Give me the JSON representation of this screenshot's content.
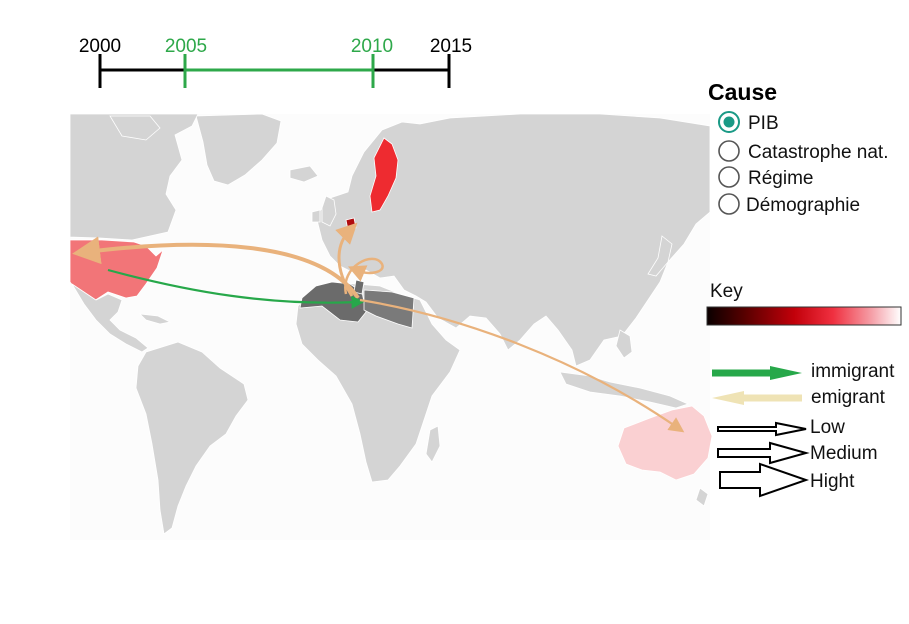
{
  "timeline": {
    "years": [
      "2000",
      "2005",
      "2010",
      "2015"
    ],
    "selected_range": [
      "2005",
      "2010"
    ],
    "base_color": "#000000",
    "selected_color": "#2ea84a"
  },
  "cause_panel": {
    "title": "Cause",
    "options": [
      {
        "label": "PIB",
        "selected": true
      },
      {
        "label": "Catastrophe nat.",
        "selected": false
      },
      {
        "label": "Régime",
        "selected": false
      },
      {
        "label": "Démographie",
        "selected": false
      }
    ],
    "selected_color": "#1a9a86"
  },
  "key": {
    "title": "Key",
    "gradient_colors": [
      "#0a0000",
      "#5a0000",
      "#c2000a",
      "#f03040",
      "#f5a0a8",
      "#ffffff"
    ]
  },
  "flow_legend": {
    "immigrant_label": "immigrant",
    "emigrant_label": "emigrant",
    "immigrant_color": "#27a84a",
    "emigrant_color": "#efe3b5",
    "sizes": [
      "Low",
      "Medium",
      "Hight"
    ]
  },
  "map": {
    "land_color": "#d4d4d4",
    "ocean_color": "#fcfcfc",
    "highlighted": [
      {
        "country": "United States",
        "color": "#f27578"
      },
      {
        "country": "Sweden",
        "color": "#ee2b30"
      },
      {
        "country": "Netherlands",
        "color": "#b10d10"
      },
      {
        "country": "Australia",
        "color": "#fad0d2"
      },
      {
        "country": "Algeria",
        "color": "#6b6b6b"
      },
      {
        "country": "Libya",
        "color": "#7a7a7a"
      },
      {
        "country": "Tunisia",
        "color": "#6b6b6b"
      }
    ],
    "flows": [
      {
        "from": "Algeria",
        "to": "United States",
        "type": "emigrant"
      },
      {
        "from": "United States",
        "to": "Algeria",
        "type": "immigrant"
      },
      {
        "from": "Algeria",
        "to": "Netherlands",
        "type": "emigrant"
      },
      {
        "from": "Algeria",
        "to": "Italy",
        "type": "emigrant"
      },
      {
        "from": "Algeria",
        "to": "Australia",
        "type": "emigrant"
      }
    ]
  }
}
